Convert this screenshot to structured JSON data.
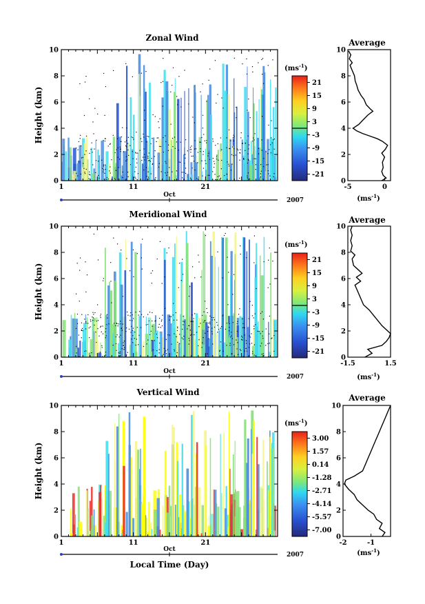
{
  "figure": {
    "x_axis_label": "Local Time (Day)",
    "y_axis_label": "Height (km)",
    "month_label": "Oct",
    "year_label": "2007",
    "colorbar_unit": "(ms",
    "colorbar_unit_exp": "-1",
    "colorbar_unit_close": ")",
    "average_title": "Average",
    "average_xlabel": "(ms",
    "average_xlabel_exp": "-1",
    "average_xlabel_close": ")",
    "colors": {
      "light_yellow": "#f5f58c",
      "yellow": "#ffff00",
      "green": "#86e07a",
      "cyan": "#42e0f0",
      "blue": "#4a8fe0",
      "dark_blue": "#2a55d0",
      "red": "#e8302a",
      "orange": "#f08a20"
    }
  },
  "chart_data": [
    {
      "type": "heatmap",
      "title": "Zonal Wind",
      "xlabel": "",
      "ylabel": "Height (km)",
      "xlim": [
        1,
        31
      ],
      "ylim": [
        0,
        10
      ],
      "x_ticks": [
        "1",
        "11",
        "21"
      ],
      "y_ticks": [
        "0",
        "2",
        "4",
        "6",
        "8",
        "10"
      ],
      "colorbar": {
        "unit": "(ms-1)",
        "tick_labels": [
          "21",
          "15",
          "9",
          "3",
          "-3",
          "-9",
          "-15",
          "-21"
        ],
        "range": [
          -24,
          24
        ]
      },
      "profile": {
        "title": "Average",
        "xlabel": "(ms-1)",
        "xlim": [
          -5,
          0.8
        ],
        "x_ticks": [
          "-5",
          "0"
        ],
        "x_tick_values": [
          -5,
          0
        ],
        "points": [
          [
            -0.4,
            0.0
          ],
          [
            0.2,
            0.2
          ],
          [
            -0.2,
            0.4
          ],
          [
            -0.4,
            0.7
          ],
          [
            -0.2,
            1.0
          ],
          [
            -0.3,
            1.4
          ],
          [
            0.0,
            1.8
          ],
          [
            -0.4,
            2.1
          ],
          [
            0.1,
            2.4
          ],
          [
            0.4,
            2.7
          ],
          [
            -0.3,
            3.0
          ],
          [
            -1.0,
            3.2
          ],
          [
            -2.0,
            3.4
          ],
          [
            -3.0,
            3.6
          ],
          [
            -3.8,
            3.8
          ],
          [
            -4.3,
            4.0
          ],
          [
            -3.5,
            4.3
          ],
          [
            -3.0,
            4.6
          ],
          [
            -2.3,
            5.0
          ],
          [
            -1.6,
            5.3
          ],
          [
            -2.0,
            5.5
          ],
          [
            -2.5,
            5.8
          ],
          [
            -2.8,
            6.2
          ],
          [
            -3.2,
            6.5
          ],
          [
            -3.6,
            6.9
          ],
          [
            -3.8,
            7.3
          ],
          [
            -4.0,
            7.6
          ],
          [
            -4.1,
            8.0
          ],
          [
            -4.4,
            8.4
          ],
          [
            -4.7,
            8.8
          ],
          [
            -4.4,
            9.0
          ],
          [
            -4.8,
            9.3
          ],
          [
            -4.6,
            9.6
          ],
          [
            -4.9,
            9.9
          ]
        ]
      }
    },
    {
      "type": "heatmap",
      "title": "Meridional Wind",
      "xlabel": "",
      "ylabel": "Height (km)",
      "xlim": [
        1,
        31
      ],
      "ylim": [
        0,
        10
      ],
      "x_ticks": [
        "1",
        "11",
        "21"
      ],
      "y_ticks": [
        "0",
        "2",
        "4",
        "6",
        "8",
        "10"
      ],
      "colorbar": {
        "unit": "(ms-1)",
        "tick_labels": [
          "21",
          "15",
          "9",
          "3",
          "-3",
          "-9",
          "-15",
          "-21"
        ],
        "range": [
          -24,
          24
        ]
      },
      "profile": {
        "title": "Average",
        "xlabel": "(ms-1)",
        "xlim": [
          -1.5,
          1.5
        ],
        "x_ticks": [
          "-1.5",
          "1.5"
        ],
        "x_tick_values": [
          -1.5,
          1.5
        ],
        "points": [
          [
            -0.3,
            0.0
          ],
          [
            0.2,
            0.3
          ],
          [
            -0.1,
            0.6
          ],
          [
            0.9,
            0.9
          ],
          [
            1.2,
            1.2
          ],
          [
            1.4,
            1.5
          ],
          [
            1.5,
            1.8
          ],
          [
            1.2,
            2.1
          ],
          [
            0.9,
            2.4
          ],
          [
            0.6,
            2.8
          ],
          [
            0.3,
            3.2
          ],
          [
            0.0,
            3.6
          ],
          [
            -0.4,
            4.0
          ],
          [
            -0.6,
            4.5
          ],
          [
            -0.8,
            5.0
          ],
          [
            -1.0,
            5.5
          ],
          [
            -0.6,
            5.8
          ],
          [
            -0.9,
            6.1
          ],
          [
            -0.5,
            6.4
          ],
          [
            -0.8,
            6.7
          ],
          [
            -1.1,
            7.0
          ],
          [
            -1.2,
            7.5
          ],
          [
            -1.0,
            7.8
          ],
          [
            -1.3,
            8.1
          ],
          [
            -1.2,
            8.5
          ],
          [
            -1.3,
            8.9
          ],
          [
            -1.2,
            9.3
          ],
          [
            -1.3,
            9.7
          ],
          [
            -1.2,
            10.0
          ]
        ]
      }
    },
    {
      "type": "heatmap",
      "title": "Vertical Wind",
      "xlabel": "Local Time (Day)",
      "ylabel": "Height (km)",
      "xlim": [
        1,
        31
      ],
      "ylim": [
        0,
        10
      ],
      "x_ticks": [
        "1",
        "11",
        "21"
      ],
      "y_ticks": [
        "0",
        "2",
        "4",
        "6",
        "8",
        "10"
      ],
      "colorbar": {
        "unit": "(ms-1)",
        "tick_labels": [
          "3.00",
          "1.57",
          "0.14",
          "-1.28",
          "-2.71",
          "-4.14",
          "-5.57",
          "-7.00"
        ],
        "range": [
          -7.9,
          3.9
        ]
      },
      "profile": {
        "title": "Average",
        "xlabel": "(ms-1)",
        "xlim": [
          -2,
          -0.3
        ],
        "x_ticks": [
          "-2",
          "-1"
        ],
        "x_tick_values": [
          -2,
          -1
        ],
        "points": [
          [
            -0.6,
            0.0
          ],
          [
            -0.5,
            0.3
          ],
          [
            -0.7,
            0.6
          ],
          [
            -0.6,
            1.0
          ],
          [
            -0.8,
            1.3
          ],
          [
            -0.9,
            1.7
          ],
          [
            -1.1,
            2.0
          ],
          [
            -1.3,
            2.4
          ],
          [
            -1.5,
            2.8
          ],
          [
            -1.6,
            3.2
          ],
          [
            -1.8,
            3.6
          ],
          [
            -1.95,
            4.0
          ],
          [
            -1.9,
            4.3
          ],
          [
            -1.6,
            4.6
          ],
          [
            -1.3,
            5.0
          ],
          [
            -1.2,
            5.5
          ],
          [
            -1.1,
            6.0
          ],
          [
            -1.0,
            6.5
          ],
          [
            -0.9,
            7.0
          ],
          [
            -0.8,
            7.5
          ],
          [
            -0.7,
            8.0
          ],
          [
            -0.6,
            8.5
          ],
          [
            -0.5,
            9.0
          ],
          [
            -0.4,
            9.5
          ],
          [
            -0.3,
            10.0
          ]
        ]
      }
    }
  ]
}
